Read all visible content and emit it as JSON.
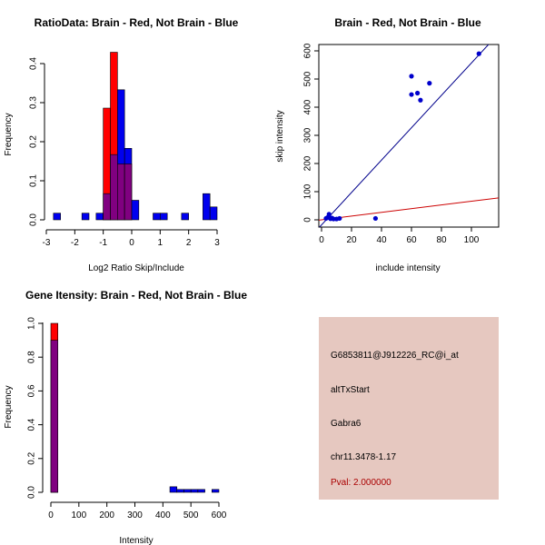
{
  "chart_data": [
    {
      "type": "bar",
      "title": "RatioData: Brain - Red, Not Brain - Blue",
      "xlabel": "Log2 Ratio Skip/Include",
      "ylabel": "Frequency",
      "xlim": [
        -3.0,
        3.2
      ],
      "ylim": [
        0,
        0.43
      ],
      "xticks": [
        "-3",
        "-2",
        "-1",
        "0",
        "1",
        "2",
        "3"
      ],
      "yticks": [
        "0.0",
        "0.1",
        "0.2",
        "0.3",
        "0.4"
      ],
      "bin_width": 0.25,
      "series": [
        {
          "name": "Not Brain",
          "color": "#0000ee",
          "bins": [
            [
              -2.75,
              0.017
            ],
            [
              -1.75,
              0.017
            ],
            [
              -1.25,
              0.017
            ],
            [
              -1.0,
              0.067
            ],
            [
              -0.75,
              0.167
            ],
            [
              -0.5,
              0.333
            ],
            [
              -0.25,
              0.183
            ],
            [
              0.0,
              0.05
            ],
            [
              0.75,
              0.017
            ],
            [
              1.0,
              0.017
            ],
            [
              1.75,
              0.017
            ],
            [
              2.5,
              0.067
            ],
            [
              2.75,
              0.033
            ]
          ]
        },
        {
          "name": "Brain",
          "color": "#ff0000",
          "bins": [
            [
              -1.0,
              0.286
            ],
            [
              -0.75,
              0.429
            ],
            [
              -0.5,
              0.143
            ],
            [
              -0.25,
              0.143
            ]
          ]
        }
      ]
    },
    {
      "type": "scatter",
      "title": "Brain - Red, Not Brain - Blue",
      "xlabel": "include intensity",
      "ylabel": "skip intensity",
      "xlim": [
        0,
        107
      ],
      "ylim": [
        0,
        620
      ],
      "xticks": [
        "0",
        "20",
        "40",
        "60",
        "80",
        "100"
      ],
      "yticks": [
        "0",
        "100",
        "200",
        "300",
        "400",
        "500",
        "600"
      ],
      "points": [
        [
          3,
          5
        ],
        [
          4,
          8
        ],
        [
          5,
          12
        ],
        [
          5,
          20
        ],
        [
          6,
          4
        ],
        [
          7,
          6
        ],
        [
          8,
          3
        ],
        [
          10,
          3
        ],
        [
          12,
          5
        ],
        [
          36,
          5
        ],
        [
          60,
          510
        ],
        [
          60,
          445
        ],
        [
          64,
          450
        ],
        [
          66,
          425
        ],
        [
          72,
          485
        ],
        [
          105,
          590
        ]
      ],
      "fit_lines": [
        {
          "name": "Not Brain fit",
          "color": "#00008b",
          "intercept": -18,
          "slope": 5.75
        },
        {
          "name": "Brain fit",
          "color": "#cc0000",
          "intercept": 0,
          "slope": 0.66
        }
      ]
    },
    {
      "type": "bar",
      "title": "Gene Itensity: Brain - Red, Not Brain - Blue",
      "xlabel": "Intensity",
      "ylabel": "Frequency",
      "xlim": [
        -5,
        610
      ],
      "ylim": [
        0,
        1.0
      ],
      "xticks": [
        "0",
        "100",
        "200",
        "300",
        "400",
        "500",
        "600"
      ],
      "yticks": [
        "0.0",
        "0.2",
        "0.4",
        "0.6",
        "0.8",
        "1.0"
      ],
      "bin_width": 25,
      "series": [
        {
          "name": "Brain",
          "color": "#ff0000",
          "bins": [
            [
              0,
              1.0
            ]
          ]
        },
        {
          "name": "Not Brain",
          "color": "#0000ee",
          "bins": [
            [
              0,
              0.9
            ],
            [
              425,
              0.033
            ],
            [
              450,
              0.017
            ],
            [
              475,
              0.017
            ],
            [
              500,
              0.017
            ],
            [
              525,
              0.017
            ],
            [
              575,
              0.017
            ]
          ]
        }
      ]
    }
  ],
  "info_panel": {
    "probe_id": "G6853811@J912226_RC@i_at",
    "event_type": "altTxStart",
    "gene": "Gabra6",
    "location": "chr11.3478-1.17",
    "pval": "Pval: 2.000000"
  },
  "colors": {
    "brain": "#ff0000",
    "not_brain": "#0000ee",
    "overlap": "#800080",
    "panel_bg": "#e6c8c0",
    "pval": "#aa0000"
  }
}
